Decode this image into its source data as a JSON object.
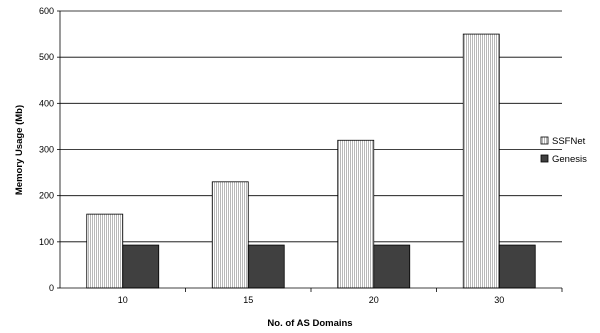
{
  "chart_data": {
    "type": "bar",
    "title": "",
    "xlabel": "No. of AS Domains",
    "ylabel": "Memory Usage (Mb)",
    "categories": [
      "10",
      "15",
      "20",
      "30"
    ],
    "ylim": [
      0,
      600
    ],
    "yticks": [
      "0",
      "100",
      "200",
      "300",
      "400",
      "500",
      "600"
    ],
    "grid": true,
    "legend_position": "right",
    "series": [
      {
        "name": "SSFNet",
        "values": [
          160,
          230,
          320,
          550
        ],
        "fill": "#ffffff",
        "pattern": "vertical-hatch"
      },
      {
        "name": "Genesis",
        "values": [
          93,
          93,
          93,
          93
        ],
        "fill": "#404040",
        "pattern": "solid"
      }
    ]
  }
}
